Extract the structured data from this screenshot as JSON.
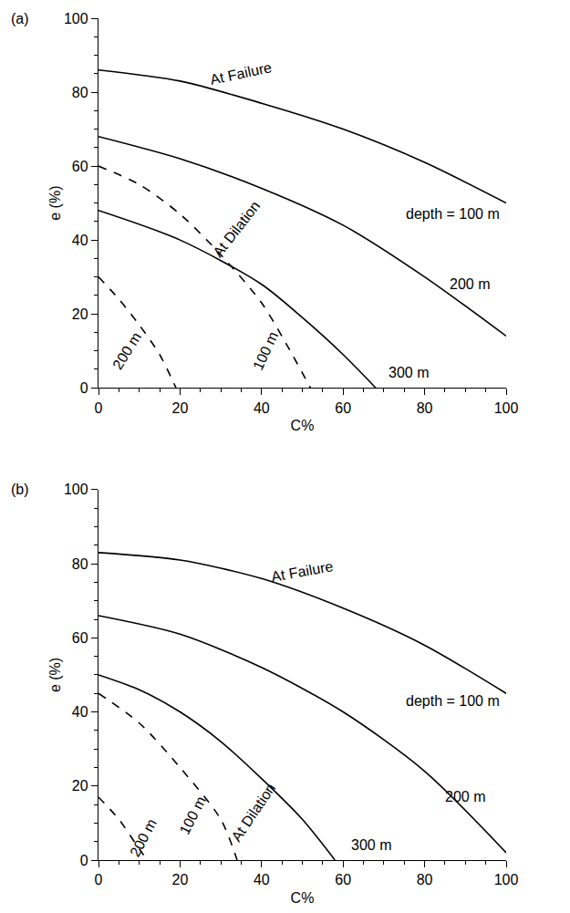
{
  "chart_data": [
    {
      "type": "line",
      "title": "(a)",
      "x_label": "C%",
      "y_label": "e (%)",
      "xlim": [
        0,
        100
      ],
      "ylim": [
        0,
        100
      ],
      "xticks": [
        0,
        20,
        40,
        60,
        80,
        100
      ],
      "yticks": [
        0,
        20,
        40,
        60,
        80,
        100
      ],
      "grid": false,
      "series": [
        {
          "color": "#000000",
          "line_style": "solid",
          "x": [
            0,
            20,
            40,
            60,
            80,
            100
          ],
          "values": [
            86,
            83,
            77,
            70,
            61,
            50
          ]
        },
        {
          "color": "#000000",
          "line_style": "solid",
          "x": [
            0,
            20,
            40,
            60,
            80,
            100
          ],
          "values": [
            68,
            62,
            54,
            44,
            30,
            14
          ]
        },
        {
          "color": "#000000",
          "line_style": "solid",
          "x": [
            0,
            20,
            40,
            50,
            60,
            68
          ],
          "values": [
            48,
            40,
            28,
            19,
            9,
            0
          ]
        },
        {
          "color": "#000000",
          "line_style": "dash",
          "x": [
            0,
            10,
            20,
            30,
            40,
            46,
            52
          ],
          "values": [
            60,
            55,
            47,
            36,
            23,
            12,
            0
          ]
        },
        {
          "color": "#000000",
          "line_style": "dash",
          "x": [
            0,
            5,
            10,
            15,
            19
          ],
          "values": [
            30,
            24,
            17,
            9,
            0
          ]
        }
      ],
      "annotations": [
        {
          "text": "At Failure",
          "x": 35,
          "y": 85
        },
        {
          "text": "At Dilation",
          "x": 34,
          "y": 43
        },
        {
          "text": "depth = 100 m",
          "x": 87,
          "y": 47
        },
        {
          "text": "200 m",
          "x": 91,
          "y": 28
        },
        {
          "text": "300 m",
          "x": 76,
          "y": 4
        },
        {
          "text": "200 m",
          "x": 7,
          "y": 10
        },
        {
          "text": "100 m",
          "x": 41,
          "y": 10
        }
      ]
    },
    {
      "type": "line",
      "title": "(b)",
      "x_label": "C%",
      "y_label": "e (%)",
      "xlim": [
        0,
        100
      ],
      "ylim": [
        0,
        100
      ],
      "xticks": [
        0,
        20,
        40,
        60,
        80,
        100
      ],
      "yticks": [
        0,
        20,
        40,
        60,
        80,
        100
      ],
      "grid": false,
      "series": [
        {
          "color": "#000000",
          "line_style": "solid",
          "x": [
            0,
            20,
            40,
            60,
            80,
            100
          ],
          "values": [
            83,
            81,
            76,
            68,
            58,
            45
          ]
        },
        {
          "color": "#000000",
          "line_style": "solid",
          "x": [
            0,
            20,
            40,
            60,
            80,
            100
          ],
          "values": [
            66,
            61,
            52,
            40,
            24,
            2
          ]
        },
        {
          "color": "#000000",
          "line_style": "solid",
          "x": [
            0,
            10,
            20,
            30,
            40,
            50,
            58
          ],
          "values": [
            50,
            46,
            40,
            32,
            22,
            11,
            0
          ]
        },
        {
          "color": "#000000",
          "line_style": "dash",
          "x": [
            0,
            10,
            20,
            30,
            34
          ],
          "values": [
            45,
            37,
            25,
            11,
            0
          ]
        },
        {
          "color": "#000000",
          "line_style": "dash",
          "x": [
            0,
            5,
            10,
            12
          ],
          "values": [
            17,
            11,
            3,
            0
          ]
        }
      ],
      "annotations": [
        {
          "text": "At Failure",
          "x": 50,
          "y": 78
        },
        {
          "text": "At Dilation",
          "x": 38,
          "y": 13
        },
        {
          "text": "depth = 100 m",
          "x": 87,
          "y": 43
        },
        {
          "text": "200 m",
          "x": 90,
          "y": 17
        },
        {
          "text": "300 m",
          "x": 67,
          "y": 4
        },
        {
          "text": "200 m",
          "x": 11,
          "y": 6
        },
        {
          "text": "100 m",
          "x": 23,
          "y": 12
        }
      ]
    }
  ]
}
